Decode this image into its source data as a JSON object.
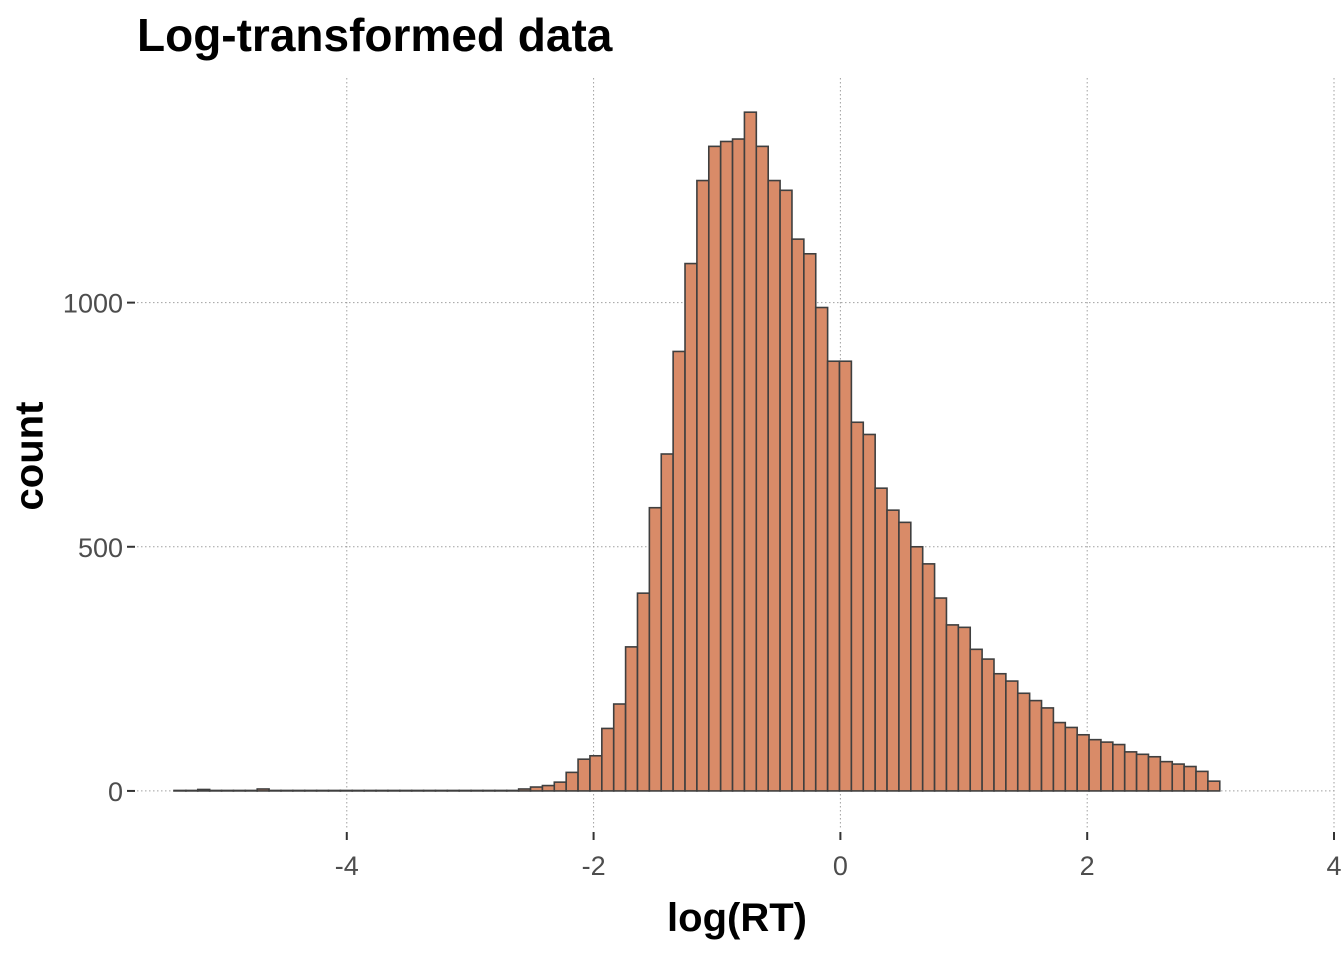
{
  "chart_data": {
    "type": "bar",
    "title": "Log-transformed data",
    "xlabel": "log(RT)",
    "ylabel": "count",
    "xlim": [
      -5.7,
      4.0
    ],
    "ylim": [
      -80,
      1460
    ],
    "x_ticks": [
      -4,
      -2,
      0,
      2,
      4
    ],
    "x_tick_labels": [
      "-4",
      "-2",
      "0",
      "2",
      "4"
    ],
    "y_ticks": [
      0,
      500,
      1000
    ],
    "y_tick_labels": [
      "0",
      "500",
      "1000"
    ],
    "grid": true,
    "bin_start": -5.4,
    "bin_width": 0.0963,
    "values": [
      1,
      1,
      3,
      1,
      1,
      1,
      1,
      4,
      1,
      1,
      1,
      1,
      1,
      1,
      1,
      1,
      1,
      1,
      1,
      1,
      1,
      1,
      1,
      1,
      1,
      1,
      1,
      1,
      1,
      4,
      8,
      11,
      18,
      38,
      65,
      72,
      128,
      178,
      295,
      405,
      580,
      690,
      900,
      1080,
      1250,
      1320,
      1330,
      1335,
      1390,
      1320,
      1250,
      1230,
      1130,
      1100,
      990,
      880,
      880,
      755,
      730,
      620,
      575,
      550,
      500,
      465,
      395,
      340,
      335,
      290,
      270,
      240,
      225,
      200,
      185,
      170,
      140,
      130,
      115,
      105,
      100,
      95,
      80,
      75,
      70,
      60,
      55,
      50,
      40,
      20
    ],
    "bar_fill": "#d98b68",
    "bar_stroke": "#3f3f3f",
    "grid_color": "#a0a0a0"
  }
}
